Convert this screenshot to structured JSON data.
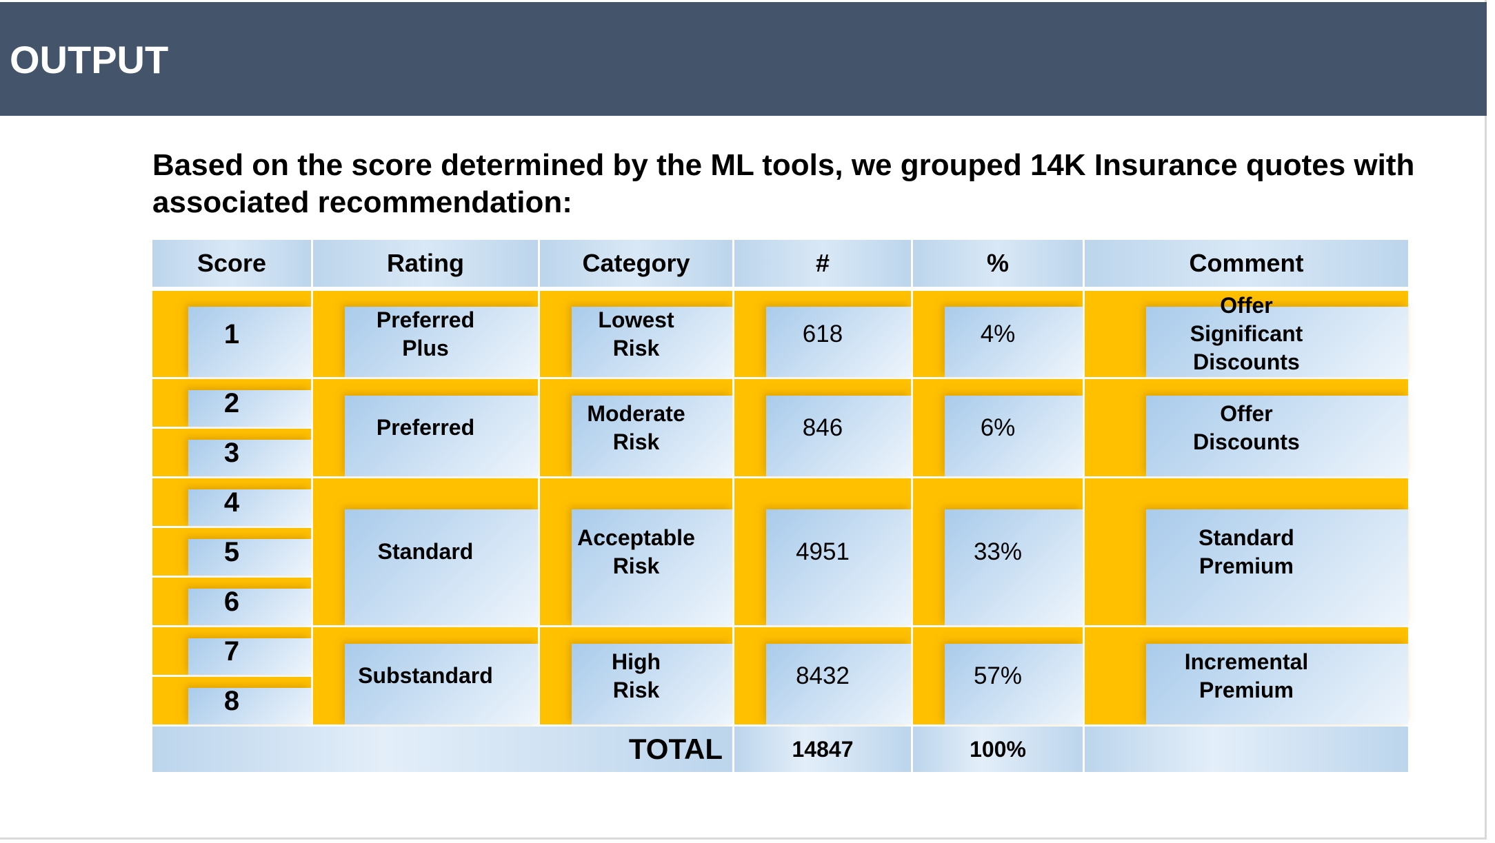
{
  "header": {
    "title": "OUTPUT"
  },
  "intro": {
    "text": "Based on the score determined by the ML tools, we grouped 14K Insurance quotes with associated recommendation:"
  },
  "table": {
    "headers": {
      "score": "Score",
      "rating": "Rating",
      "category": "Category",
      "count": "#",
      "percent": "%",
      "comment": "Comment"
    },
    "scores": [
      "1",
      "2",
      "3",
      "4",
      "5",
      "6",
      "7",
      "8"
    ],
    "groups": [
      {
        "rating": "Preferred\nPlus",
        "category": "Lowest\nRisk",
        "count": "618",
        "percent": "4%",
        "comment": "Offer\nSignificant\nDiscounts"
      },
      {
        "rating": "Preferred",
        "category": "Moderate\nRisk",
        "count": "846",
        "percent": "6%",
        "comment": "Offer\nDiscounts"
      },
      {
        "rating": "Standard",
        "category": "Acceptable\nRisk",
        "count": "4951",
        "percent": "33%",
        "comment": "Standard\nPremium"
      },
      {
        "rating": "Substandard",
        "category": "High\nRisk",
        "count": "8432",
        "percent": "57%",
        "comment": "Incremental\nPremium"
      }
    ],
    "total": {
      "label": "TOTAL",
      "count": "14847",
      "percent": "100%"
    }
  },
  "colors": {
    "header_band": "#44546a",
    "gold": "#ffc000",
    "blue_light": "#cfe2f4",
    "blue_mid": "#a9cbeb"
  }
}
